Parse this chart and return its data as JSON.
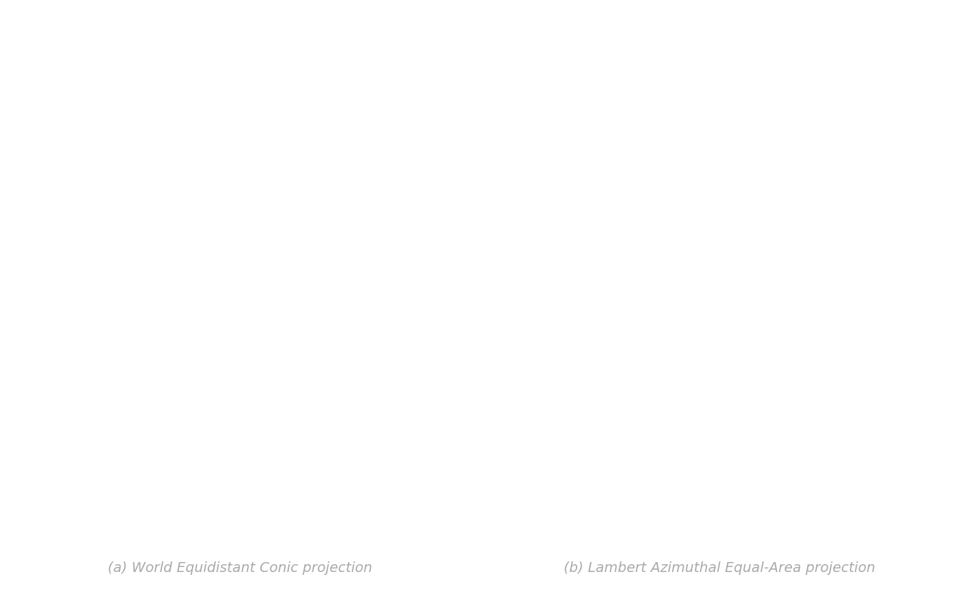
{
  "title_a": "(a) World Equidistant Conic projection",
  "title_b": "(b) Lambert Azimuthal Equal-Area projection",
  "title_color": "#aaaaaa",
  "title_fontsize": 14,
  "background_color": "#ffffff",
  "land_color": "#cccccc",
  "land_edge_color": "#555555",
  "ocean_color": "#f0f0f0",
  "graticule_color": "#999999",
  "graticule_linewidth": 0.5,
  "border_linewidth": 0.5,
  "figsize": [
    13.44,
    8.3
  ],
  "dpi": 100
}
